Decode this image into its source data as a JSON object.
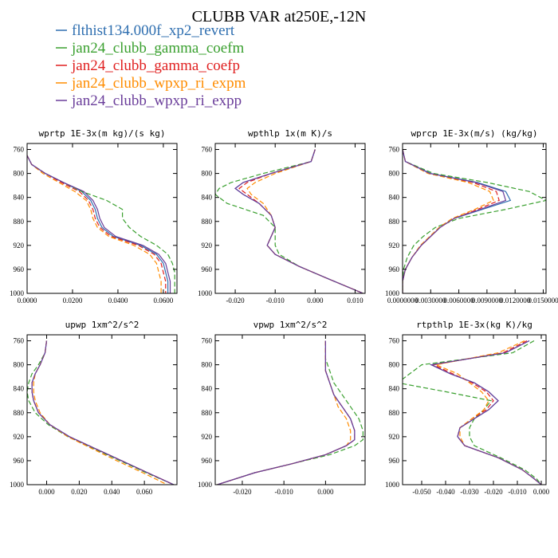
{
  "figure": {
    "title": "CLUBB VAR at250E,-12N"
  },
  "legend": [
    {
      "label": "flthist134.000f_xp2_revert",
      "color": "#2f6fb0"
    },
    {
      "label": "jan24_clubb_gamma_coefm",
      "color": "#3aa02f"
    },
    {
      "label": "jan24_clubb_gamma_coefp",
      "color": "#e01f1f"
    },
    {
      "label": "jan24_clubb_wpxp_ri_expm",
      "color": "#ff8c00"
    },
    {
      "label": "jan24_clubb_wpxp_ri_expp",
      "color": "#6a3d9a"
    }
  ],
  "chart_data": [
    {
      "type": "line",
      "title": "wprtp  1E-3x(m kg)/(s kg)",
      "xlim": [
        0.0,
        0.066
      ],
      "ylim": [
        1000,
        750
      ],
      "xticks": [
        0.0,
        0.02,
        0.04,
        0.06
      ],
      "xtick_labels": [
        "0.0000",
        "0.0200",
        "0.0400",
        "0.0600"
      ],
      "yticks": [
        760,
        800,
        840,
        880,
        920,
        960,
        1000
      ],
      "y": [
        770,
        785,
        800,
        815,
        830,
        845,
        860,
        875,
        890,
        905,
        920,
        935,
        950,
        965,
        980,
        1000
      ],
      "series": [
        {
          "x": [
            0.0,
            0.002,
            0.008,
            0.016,
            0.024,
            0.028,
            0.03,
            0.031,
            0.033,
            0.038,
            0.05,
            0.057,
            0.06,
            0.061,
            0.062,
            0.062
          ]
        },
        {
          "x": [
            0.0,
            0.002,
            0.008,
            0.016,
            0.024,
            0.035,
            0.042,
            0.042,
            0.045,
            0.05,
            0.057,
            0.062,
            0.064,
            0.065,
            0.065,
            0.065
          ]
        },
        {
          "x": [
            0.0,
            0.002,
            0.008,
            0.015,
            0.023,
            0.027,
            0.029,
            0.03,
            0.032,
            0.037,
            0.049,
            0.056,
            0.059,
            0.06,
            0.061,
            0.061
          ]
        },
        {
          "x": [
            0.0,
            0.002,
            0.007,
            0.014,
            0.021,
            0.026,
            0.028,
            0.029,
            0.031,
            0.036,
            0.047,
            0.054,
            0.057,
            0.058,
            0.059,
            0.059
          ]
        },
        {
          "x": [
            0.0,
            0.002,
            0.008,
            0.016,
            0.025,
            0.029,
            0.031,
            0.032,
            0.034,
            0.039,
            0.051,
            0.058,
            0.061,
            0.062,
            0.063,
            0.063
          ]
        }
      ]
    },
    {
      "type": "line",
      "title": "wpthlp  1x(m K)/s",
      "xlim": [
        -0.025,
        0.0125
      ],
      "ylim": [
        1000,
        750
      ],
      "xticks": [
        -0.02,
        -0.01,
        0.0,
        0.01
      ],
      "xtick_labels": [
        "-0.020",
        "-0.010",
        "0.000",
        "0.010"
      ],
      "yticks": [
        760,
        800,
        840,
        880,
        920,
        960,
        1000
      ],
      "y": [
        760,
        780,
        800,
        815,
        825,
        835,
        850,
        870,
        890,
        905,
        920,
        935,
        955,
        975,
        1000
      ],
      "series": [
        {
          "x": [
            0.0,
            -0.001,
            -0.011,
            -0.018,
            -0.02,
            -0.018,
            -0.014,
            -0.011,
            -0.01,
            -0.011,
            -0.012,
            -0.01,
            -0.004,
            0.003,
            0.012
          ]
        },
        {
          "x": [
            0.0,
            -0.001,
            -0.013,
            -0.021,
            -0.024,
            -0.025,
            -0.022,
            -0.013,
            -0.01,
            -0.01,
            -0.01,
            -0.009,
            -0.004,
            0.003,
            0.012
          ]
        },
        {
          "x": [
            0.0,
            -0.001,
            -0.011,
            -0.017,
            -0.019,
            -0.017,
            -0.014,
            -0.011,
            -0.01,
            -0.011,
            -0.012,
            -0.01,
            -0.004,
            0.003,
            0.012
          ]
        },
        {
          "x": [
            0.0,
            -0.001,
            -0.01,
            -0.015,
            -0.017,
            -0.016,
            -0.013,
            -0.011,
            -0.01,
            -0.011,
            -0.012,
            -0.01,
            -0.004,
            0.003,
            0.012
          ]
        },
        {
          "x": [
            0.0,
            -0.001,
            -0.011,
            -0.018,
            -0.02,
            -0.018,
            -0.014,
            -0.011,
            -0.01,
            -0.011,
            -0.012,
            -0.01,
            -0.004,
            0.003,
            0.012
          ]
        }
      ]
    },
    {
      "type": "line",
      "title": "wprcp  1E-3x(m/s) (kg/kg)",
      "xlim": [
        0.0,
        0.0153
      ],
      "ylim": [
        1000,
        750
      ],
      "xticks": [
        0.0,
        0.003,
        0.006,
        0.009,
        0.012,
        0.015
      ],
      "xtick_labels": [
        "0.0000000",
        "0.0030000",
        "0.0060000",
        "0.0090000",
        "0.0120000",
        "0.0150000"
      ],
      "yticks": [
        760,
        800,
        840,
        880,
        920,
        960,
        1000
      ],
      "y": [
        760,
        780,
        800,
        815,
        830,
        845,
        860,
        875,
        890,
        905,
        920,
        940,
        960,
        980,
        1000
      ],
      "series": [
        {
          "x": [
            0.0,
            0.0003,
            0.003,
            0.008,
            0.011,
            0.0115,
            0.0085,
            0.0055,
            0.004,
            0.003,
            0.002,
            0.001,
            0.0003,
            0.0,
            0.0
          ]
        },
        {
          "x": [
            0.0,
            0.0003,
            0.0033,
            0.009,
            0.0135,
            0.0153,
            0.011,
            0.006,
            0.0035,
            0.0022,
            0.0012,
            0.0005,
            0.0001,
            0.0,
            0.0
          ]
        },
        {
          "x": [
            0.0,
            0.0003,
            0.0028,
            0.0075,
            0.01,
            0.0103,
            0.008,
            0.0055,
            0.004,
            0.003,
            0.002,
            0.001,
            0.0003,
            0.0,
            0.0
          ]
        },
        {
          "x": [
            0.0,
            0.0003,
            0.0027,
            0.007,
            0.0093,
            0.0097,
            0.0077,
            0.0053,
            0.0039,
            0.0029,
            0.0019,
            0.001,
            0.0003,
            0.0,
            0.0
          ]
        },
        {
          "x": [
            0.0,
            0.0003,
            0.0029,
            0.0078,
            0.0107,
            0.011,
            0.0083,
            0.0055,
            0.004,
            0.003,
            0.002,
            0.001,
            0.0003,
            0.0,
            0.0
          ]
        }
      ]
    },
    {
      "type": "line",
      "title": "upwp  1xm^2/s^2",
      "xlim": [
        -0.012,
        0.08
      ],
      "ylim": [
        1000,
        750
      ],
      "xticks": [
        0.0,
        0.02,
        0.04,
        0.06
      ],
      "xtick_labels": [
        "0.000",
        "0.020",
        "0.040",
        "0.060"
      ],
      "yticks": [
        760,
        800,
        840,
        880,
        920,
        960,
        1000
      ],
      "y": [
        760,
        780,
        800,
        815,
        830,
        845,
        860,
        880,
        900,
        920,
        940,
        960,
        980,
        1000
      ],
      "series": [
        {
          "x": [
            0.0,
            -0.001,
            -0.004,
            -0.007,
            -0.009,
            -0.009,
            -0.008,
            -0.005,
            0.002,
            0.014,
            0.03,
            0.046,
            0.062,
            0.078
          ]
        },
        {
          "x": [
            0.0,
            -0.001,
            -0.005,
            -0.009,
            -0.011,
            -0.012,
            -0.011,
            -0.007,
            0.001,
            0.013,
            0.029,
            0.045,
            0.061,
            0.078
          ]
        },
        {
          "x": [
            0.0,
            -0.001,
            -0.004,
            -0.007,
            -0.009,
            -0.009,
            -0.008,
            -0.005,
            0.002,
            0.014,
            0.03,
            0.046,
            0.062,
            0.078
          ]
        },
        {
          "x": [
            0.0,
            -0.001,
            -0.004,
            -0.007,
            -0.008,
            -0.008,
            -0.007,
            -0.004,
            0.002,
            0.013,
            0.028,
            0.043,
            0.059,
            0.074
          ]
        },
        {
          "x": [
            0.0,
            -0.001,
            -0.004,
            -0.007,
            -0.009,
            -0.009,
            -0.008,
            -0.005,
            0.002,
            0.014,
            0.03,
            0.046,
            0.062,
            0.078
          ]
        }
      ]
    },
    {
      "type": "line",
      "title": "vpwp  1xm^2/s^2",
      "xlim": [
        -0.0265,
        0.0095
      ],
      "ylim": [
        1000,
        750
      ],
      "xticks": [
        -0.02,
        -0.01,
        0.0
      ],
      "xtick_labels": [
        "-0.020",
        "-0.010",
        "0.000"
      ],
      "yticks": [
        760,
        800,
        840,
        880,
        920,
        960,
        1000
      ],
      "y": [
        760,
        790,
        810,
        830,
        850,
        870,
        890,
        910,
        925,
        935,
        950,
        965,
        980,
        1000
      ],
      "series": [
        {
          "x": [
            0.0,
            0.0,
            0.0,
            0.001,
            0.002,
            0.004,
            0.006,
            0.007,
            0.007,
            0.005,
            0.0,
            -0.008,
            -0.017,
            -0.026
          ]
        },
        {
          "x": [
            0.0,
            0.0,
            0.001,
            0.002,
            0.004,
            0.006,
            0.008,
            0.009,
            0.009,
            0.007,
            0.001,
            -0.008,
            -0.017,
            -0.026
          ]
        },
        {
          "x": [
            0.0,
            0.0,
            0.0,
            0.001,
            0.002,
            0.004,
            0.006,
            0.007,
            0.007,
            0.005,
            0.0,
            -0.008,
            -0.017,
            -0.026
          ]
        },
        {
          "x": [
            0.0,
            0.0,
            0.0,
            0.001,
            0.002,
            0.003,
            0.005,
            0.006,
            0.006,
            0.005,
            0.0,
            -0.008,
            -0.017,
            -0.026
          ]
        },
        {
          "x": [
            0.0,
            0.0,
            0.0,
            0.001,
            0.002,
            0.004,
            0.006,
            0.007,
            0.007,
            0.005,
            0.0,
            -0.008,
            -0.017,
            -0.026
          ]
        }
      ]
    },
    {
      "type": "line",
      "title": "rtpthlp  1E-3x(kg K)/kg",
      "xlim": [
        -0.058,
        0.002
      ],
      "ylim": [
        1000,
        750
      ],
      "xticks": [
        -0.05,
        -0.04,
        -0.03,
        -0.02,
        -0.01,
        0.0
      ],
      "xtick_labels": [
        "-0.050",
        "-0.040",
        "-0.030",
        "-0.020",
        "-0.010",
        "0.000"
      ],
      "yticks": [
        760,
        800,
        840,
        880,
        920,
        960,
        1000
      ],
      "y": [
        760,
        780,
        800,
        815,
        830,
        845,
        860,
        875,
        890,
        905,
        920,
        935,
        955,
        975,
        990,
        1000
      ],
      "series": [
        {
          "x": [
            -0.005,
            -0.015,
            -0.046,
            -0.038,
            -0.028,
            -0.022,
            -0.018,
            -0.022,
            -0.028,
            -0.034,
            -0.035,
            -0.032,
            -0.018,
            -0.008,
            -0.003,
            0.0
          ]
        },
        {
          "x": [
            -0.003,
            -0.012,
            -0.05,
            -0.055,
            -0.06,
            -0.04,
            -0.021,
            -0.024,
            -0.028,
            -0.03,
            -0.03,
            -0.028,
            -0.017,
            -0.007,
            -0.002,
            0.0
          ]
        },
        {
          "x": [
            -0.006,
            -0.016,
            -0.045,
            -0.037,
            -0.029,
            -0.023,
            -0.02,
            -0.023,
            -0.029,
            -0.034,
            -0.035,
            -0.032,
            -0.018,
            -0.008,
            -0.003,
            0.0
          ]
        },
        {
          "x": [
            -0.007,
            -0.018,
            -0.044,
            -0.035,
            -0.03,
            -0.025,
            -0.022,
            -0.024,
            -0.029,
            -0.034,
            -0.034,
            -0.032,
            -0.018,
            -0.008,
            -0.003,
            0.0
          ]
        },
        {
          "x": [
            -0.005,
            -0.015,
            -0.046,
            -0.038,
            -0.028,
            -0.022,
            -0.018,
            -0.022,
            -0.028,
            -0.034,
            -0.035,
            -0.032,
            -0.018,
            -0.008,
            -0.003,
            0.0
          ]
        }
      ]
    }
  ]
}
